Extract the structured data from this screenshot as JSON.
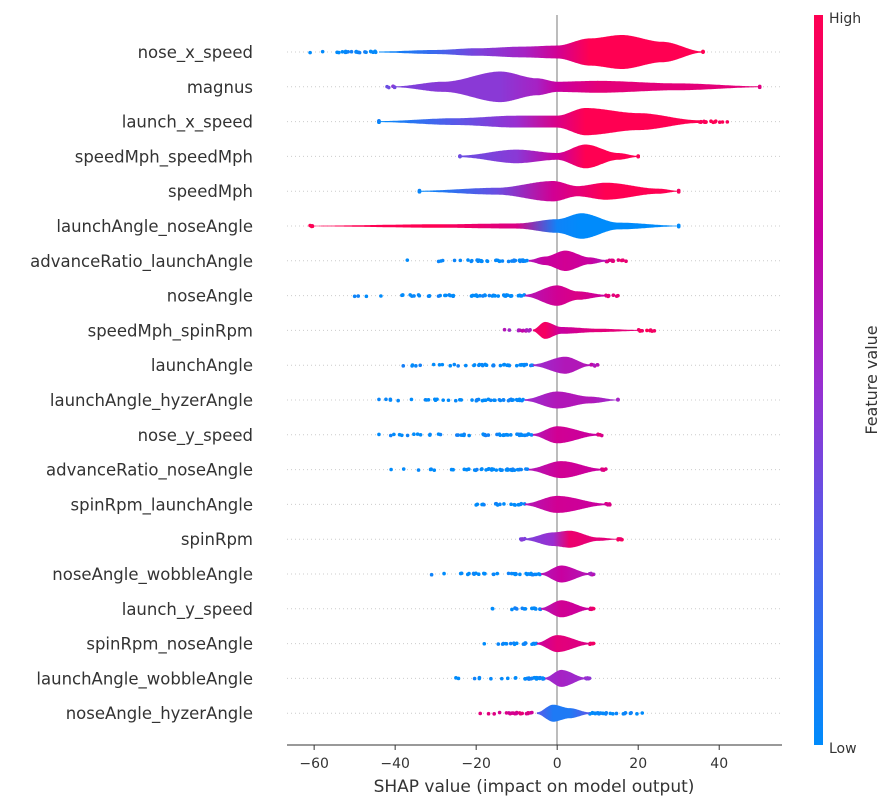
{
  "chart_data": {
    "type": "violin",
    "title": "",
    "xlabel": "SHAP value (impact on model output)",
    "ylabel": "",
    "xlim": [
      -66.7,
      55.5
    ],
    "xticks": [
      -60,
      -40,
      -20,
      0,
      20,
      40
    ],
    "grid": "horizontal dotted row lines",
    "colorbar": {
      "label": "Feature value",
      "high_label": "High",
      "low_label": "Low",
      "low_color": "#008bfb",
      "high_color": "#ff0052"
    },
    "features": [
      {
        "name": "nose_x_speed",
        "dot_range": [
          -61,
          36
        ],
        "tail_colors": [
          0.0,
          1.0
        ],
        "violin": [
          [
            -44,
            0.03,
            0.0
          ],
          [
            -30,
            0.12,
            0.2
          ],
          [
            -20,
            0.22,
            0.4
          ],
          [
            -8,
            0.32,
            0.55
          ],
          [
            0,
            0.38,
            0.75
          ],
          [
            8,
            0.8,
            1.0
          ],
          [
            16,
            1.0,
            1.0
          ],
          [
            26,
            0.6,
            1.0
          ],
          [
            36,
            0.03,
            1.0
          ]
        ]
      },
      {
        "name": "magnus",
        "dot_range": [
          -42,
          50
        ],
        "tail_colors": [
          0.4,
          0.85
        ],
        "violin": [
          [
            -40,
            0.03,
            0.4
          ],
          [
            -28,
            0.3,
            0.45
          ],
          [
            -14,
            0.9,
            0.45
          ],
          [
            -5,
            0.5,
            0.55
          ],
          [
            0,
            0.3,
            0.7
          ],
          [
            10,
            0.35,
            0.85
          ],
          [
            30,
            0.2,
            0.85
          ],
          [
            50,
            0.03,
            0.85
          ]
        ]
      },
      {
        "name": "launch_x_speed",
        "dot_range": [
          -44,
          42
        ],
        "tail_colors": [
          0.0,
          1.0
        ],
        "violin": [
          [
            -44,
            0.03,
            0.0
          ],
          [
            -25,
            0.2,
            0.3
          ],
          [
            -10,
            0.35,
            0.5
          ],
          [
            0,
            0.35,
            0.8
          ],
          [
            7,
            0.8,
            1.0
          ],
          [
            20,
            0.5,
            1.0
          ],
          [
            35,
            0.08,
            1.0
          ]
        ]
      },
      {
        "name": "speedMph_speedMph",
        "dot_range": [
          -24,
          20
        ],
        "tail_colors": [
          0.35,
          1.0
        ],
        "violin": [
          [
            -24,
            0.05,
            0.35
          ],
          [
            -10,
            0.4,
            0.45
          ],
          [
            0,
            0.2,
            0.7
          ],
          [
            7,
            0.7,
            1.0
          ],
          [
            15,
            0.2,
            1.0
          ],
          [
            20,
            0.03,
            1.0
          ]
        ]
      },
      {
        "name": "speedMph",
        "dot_range": [
          -34,
          30
        ],
        "tail_colors": [
          0.0,
          1.0
        ],
        "violin": [
          [
            -34,
            0.03,
            0.0
          ],
          [
            -15,
            0.2,
            0.35
          ],
          [
            -1,
            0.6,
            0.75
          ],
          [
            5,
            0.3,
            0.85
          ],
          [
            12,
            0.5,
            1.0
          ],
          [
            25,
            0.15,
            1.0
          ],
          [
            30,
            0.02,
            1.0
          ]
        ]
      },
      {
        "name": "launchAngle_noseAngle",
        "dot_range": [
          -61,
          30
        ],
        "tail_colors": [
          1.0,
          0.0
        ],
        "violin": [
          [
            -60,
            0.02,
            1.0
          ],
          [
            -30,
            0.1,
            1.0
          ],
          [
            -10,
            0.15,
            0.8
          ],
          [
            0,
            0.4,
            0.05
          ],
          [
            6,
            0.75,
            0.0
          ],
          [
            15,
            0.2,
            0.0
          ],
          [
            30,
            0.02,
            0.0
          ]
        ]
      },
      {
        "name": "advanceRatio_launchAngle",
        "dot_range": [
          -37,
          17
        ],
        "tail_colors": [
          0.0,
          0.85
        ],
        "violin": [
          [
            -7,
            0.05,
            0.6
          ],
          [
            -3,
            0.25,
            0.7
          ],
          [
            2,
            0.6,
            0.75
          ],
          [
            8,
            0.2,
            0.7
          ],
          [
            12,
            0.05,
            0.6
          ]
        ]
      },
      {
        "name": "noseAngle",
        "dot_range": [
          -50,
          15
        ],
        "tail_colors": [
          0.0,
          0.85
        ],
        "violin": [
          [
            -8,
            0.05,
            0.6
          ],
          [
            0,
            0.6,
            0.75
          ],
          [
            5,
            0.25,
            0.8
          ],
          [
            12,
            0.05,
            0.7
          ]
        ]
      },
      {
        "name": "speedMph_spinRpm",
        "dot_range": [
          -13,
          24
        ],
        "tail_colors": [
          0.6,
          0.95
        ],
        "violin": [
          [
            -6,
            0.05,
            0.9
          ],
          [
            -3,
            0.5,
            0.95
          ],
          [
            1,
            0.2,
            0.7
          ],
          [
            10,
            0.1,
            0.85
          ],
          [
            20,
            0.03,
            0.85
          ]
        ]
      },
      {
        "name": "launchAngle",
        "dot_range": [
          -38,
          10
        ],
        "tail_colors": [
          0.0,
          0.6
        ],
        "violin": [
          [
            -6,
            0.05,
            0.5
          ],
          [
            2,
            0.5,
            0.6
          ],
          [
            8,
            0.05,
            0.6
          ]
        ]
      },
      {
        "name": "launchAngle_hyzerAngle",
        "dot_range": [
          -44,
          15
        ],
        "tail_colors": [
          0.0,
          0.6
        ],
        "violin": [
          [
            -8,
            0.05,
            0.5
          ],
          [
            0,
            0.5,
            0.6
          ],
          [
            8,
            0.2,
            0.6
          ],
          [
            15,
            0.02,
            0.5
          ]
        ]
      },
      {
        "name": "nose_y_speed",
        "dot_range": [
          -44,
          11
        ],
        "tail_colors": [
          0.0,
          0.8
        ],
        "violin": [
          [
            -6,
            0.05,
            0.6
          ],
          [
            0,
            0.5,
            0.75
          ],
          [
            10,
            0.05,
            0.7
          ]
        ]
      },
      {
        "name": "advanceRatio_noseAngle",
        "dot_range": [
          -41,
          12
        ],
        "tail_colors": [
          0.0,
          0.8
        ],
        "violin": [
          [
            -7,
            0.05,
            0.6
          ],
          [
            1,
            0.5,
            0.75
          ],
          [
            11,
            0.05,
            0.7
          ]
        ]
      },
      {
        "name": "spinRpm_launchAngle",
        "dot_range": [
          -20,
          13
        ],
        "tail_colors": [
          0.0,
          0.8
        ],
        "violin": [
          [
            -8,
            0.05,
            0.6
          ],
          [
            0,
            0.5,
            0.75
          ],
          [
            12,
            0.05,
            0.7
          ]
        ]
      },
      {
        "name": "spinRpm",
        "dot_range": [
          -9,
          16
        ],
        "tail_colors": [
          0.4,
          0.95
        ],
        "violin": [
          [
            -8,
            0.05,
            0.4
          ],
          [
            -1,
            0.4,
            0.5
          ],
          [
            3,
            0.5,
            0.9
          ],
          [
            10,
            0.1,
            0.85
          ],
          [
            15,
            0.02,
            0.85
          ]
        ]
      },
      {
        "name": "noseAngle_wobbleAngle",
        "dot_range": [
          -31,
          9
        ],
        "tail_colors": [
          0.0,
          0.6
        ],
        "violin": [
          [
            -4,
            0.05,
            0.6
          ],
          [
            1,
            0.5,
            0.7
          ],
          [
            8,
            0.05,
            0.6
          ]
        ]
      },
      {
        "name": "launch_y_speed",
        "dot_range": [
          -16,
          9
        ],
        "tail_colors": [
          0.0,
          0.9
        ],
        "violin": [
          [
            -4,
            0.05,
            0.6
          ],
          [
            1,
            0.5,
            0.75
          ],
          [
            8,
            0.05,
            0.7
          ]
        ]
      },
      {
        "name": "spinRpm_noseAngle",
        "dot_range": [
          -18,
          9
        ],
        "tail_colors": [
          0.0,
          0.9
        ],
        "violin": [
          [
            -5,
            0.05,
            0.7
          ],
          [
            0,
            0.5,
            0.85
          ],
          [
            8,
            0.05,
            0.8
          ]
        ]
      },
      {
        "name": "launchAngle_wobbleAngle",
        "dot_range": [
          -25,
          8
        ],
        "tail_colors": [
          0.0,
          0.5
        ],
        "violin": [
          [
            -3,
            0.05,
            0.5
          ],
          [
            1,
            0.5,
            0.55
          ],
          [
            7,
            0.05,
            0.5
          ]
        ]
      },
      {
        "name": "noseAngle_hyzerAngle",
        "dot_range": [
          -19,
          21
        ],
        "tail_colors": [
          0.8,
          0.0
        ],
        "violin": [
          [
            -5,
            0.05,
            0.3
          ],
          [
            -1,
            0.5,
            0.1
          ],
          [
            3,
            0.3,
            0.1
          ],
          [
            8,
            0.05,
            0.3
          ]
        ]
      }
    ]
  }
}
